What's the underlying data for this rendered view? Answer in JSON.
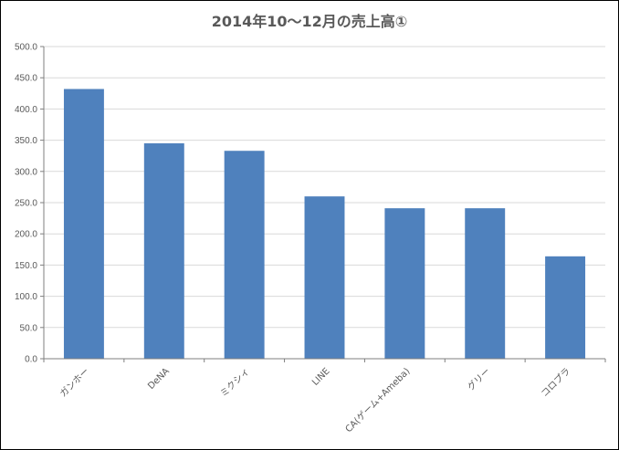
{
  "chart_data": {
    "type": "bar",
    "title": "2014年10〜12月の売上高①",
    "xlabel": "",
    "ylabel": "",
    "categories": [
      "ガンホー",
      "DeNA",
      "ミクシィ",
      "LINE",
      "CA(ゲーム+Ameba)",
      "グリー",
      "コロプラ"
    ],
    "values": [
      432,
      345,
      333,
      260,
      241,
      241,
      164
    ],
    "ylim": [
      0,
      500
    ],
    "ytick_labels": [
      "0.0",
      "50.0",
      "100.0",
      "150.0",
      "200.0",
      "250.0",
      "300.0",
      "350.0",
      "400.0",
      "450.0",
      "500.0"
    ],
    "grid": true,
    "legend": "none",
    "bar_color": "#4f81bd"
  }
}
